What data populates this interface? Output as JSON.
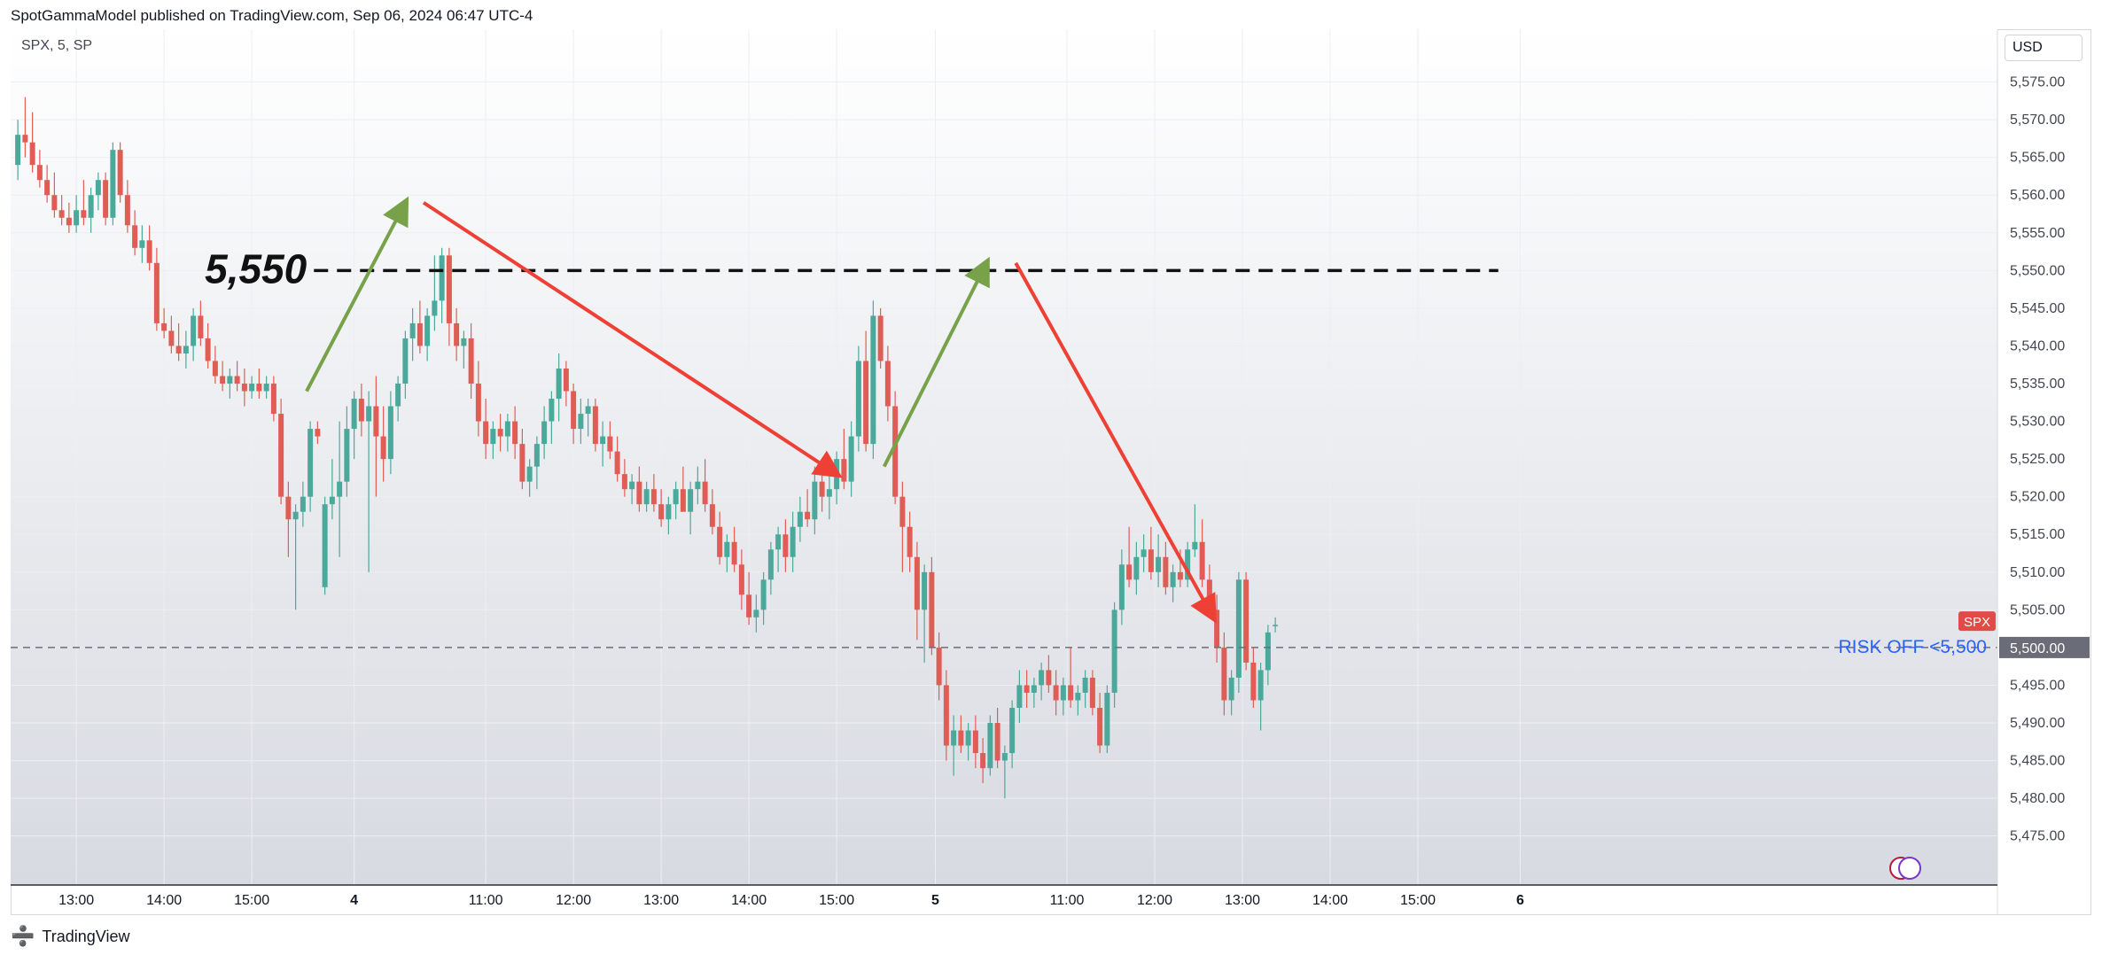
{
  "header": {
    "publish_line": "SpotGammaModel published on TradingView.com, Sep 06, 2024 06:47 UTC-4"
  },
  "chart_header": {
    "symbol_line": "SPX, 5, SP",
    "currency": "USD"
  },
  "footer": {
    "brand": "TradingView",
    "logo_glyph": "➗"
  },
  "colors": {
    "up": "#4aa99b",
    "down": "#e05d55",
    "green_arrow": "#77a24a",
    "red_arrow": "#ef4035",
    "level_line": "#111111",
    "risk_label": "#2962ff",
    "spx_badge": "#e04c45",
    "price_badge": "#6a6d78",
    "grid": "#eceef2",
    "bg_top": "#ffffff",
    "bg_bottom": "#d7dae1"
  },
  "chart_data": {
    "type": "candlestick",
    "symbol": "SPX",
    "interval": "5",
    "exchange": "SP",
    "currency": "USD",
    "ylim": [
      5468.5,
      5582.0
    ],
    "y_ticks": [
      "5,475.00",
      "5,480.00",
      "5,485.00",
      "5,490.00",
      "5,495.00",
      "5,500.00",
      "5,505.00",
      "5,510.00",
      "5,515.00",
      "5,520.00",
      "5,525.00",
      "5,530.00",
      "5,535.00",
      "5,540.00",
      "5,545.00",
      "5,550.00",
      "5,555.00",
      "5,560.00",
      "5,565.00",
      "5,570.00",
      "5,575.00"
    ],
    "x_ticks": [
      {
        "bar": 8.5,
        "label": "13:00",
        "bold": false
      },
      {
        "bar": 20.5,
        "label": "14:00",
        "bold": false
      },
      {
        "bar": 32.5,
        "label": "15:00",
        "bold": false
      },
      {
        "bar": 46.5,
        "label": "4",
        "bold": true
      },
      {
        "bar": 64.5,
        "label": "11:00",
        "bold": false
      },
      {
        "bar": 76.5,
        "label": "12:00",
        "bold": false
      },
      {
        "bar": 88.5,
        "label": "13:00",
        "bold": false
      },
      {
        "bar": 100.5,
        "label": "14:00",
        "bold": false
      },
      {
        "bar": 112.5,
        "label": "15:00",
        "bold": false
      },
      {
        "bar": 126,
        "label": "5",
        "bold": true
      },
      {
        "bar": 144,
        "label": "11:00",
        "bold": false
      },
      {
        "bar": 156,
        "label": "12:00",
        "bold": false
      },
      {
        "bar": 168,
        "label": "13:00",
        "bold": false
      },
      {
        "bar": 180,
        "label": "14:00",
        "bold": false
      },
      {
        "bar": 192,
        "label": "15:00",
        "bold": false
      },
      {
        "bar": 206,
        "label": "6",
        "bold": true
      }
    ],
    "candles": [
      [
        5564,
        5570,
        5562,
        5568
      ],
      [
        5568,
        5573,
        5565,
        5567
      ],
      [
        5567,
        5571,
        5563,
        5564
      ],
      [
        5564,
        5566,
        5561,
        5562
      ],
      [
        5562,
        5564,
        5559,
        5560
      ],
      [
        5560,
        5563,
        5557,
        5558
      ],
      [
        5558,
        5560,
        5556,
        5557
      ],
      [
        5557,
        5559,
        5555,
        5556
      ],
      [
        5556,
        5560,
        5555,
        5558
      ],
      [
        5558,
        5562,
        5556,
        5557
      ],
      [
        5557,
        5561,
        5555,
        5560
      ],
      [
        5560,
        5563,
        5558,
        5562
      ],
      [
        5562,
        5563,
        5556,
        5557
      ],
      [
        5557,
        5567,
        5556,
        5566
      ],
      [
        5566,
        5567,
        5559,
        5560
      ],
      [
        5560,
        5562,
        5555,
        5556
      ],
      [
        5556,
        5558,
        5552,
        5553
      ],
      [
        5553,
        5556,
        5551,
        5554
      ],
      [
        5554,
        5556,
        5550,
        5551
      ],
      [
        5551,
        5553,
        5542,
        5543
      ],
      [
        5543,
        5545,
        5541,
        5542
      ],
      [
        5542,
        5544,
        5539,
        5540
      ],
      [
        5540,
        5543,
        5538,
        5539
      ],
      [
        5539,
        5542,
        5537,
        5540
      ],
      [
        5540,
        5545,
        5538,
        5544
      ],
      [
        5544,
        5546,
        5540,
        5541
      ],
      [
        5541,
        5543,
        5537,
        5538
      ],
      [
        5538,
        5540,
        5535,
        5536
      ],
      [
        5536,
        5538,
        5534,
        5535
      ],
      [
        5535,
        5537,
        5533,
        5536
      ],
      [
        5536,
        5538,
        5534,
        5535
      ],
      [
        5535,
        5537,
        5532,
        5534
      ],
      [
        5534,
        5536,
        5533,
        5535
      ],
      [
        5535,
        5537,
        5533,
        5534
      ],
      [
        5534,
        5536,
        5533,
        5535
      ],
      [
        5535,
        5536,
        5530,
        5531
      ],
      [
        5531,
        5533,
        5519,
        5520
      ],
      [
        5520,
        5522,
        5512,
        5517
      ],
      [
        5517,
        5519,
        5505,
        5518
      ],
      [
        5518,
        5522,
        5516,
        5520
      ],
      [
        5520,
        5530,
        5518,
        5529
      ],
      [
        5529,
        5530,
        5527,
        5528
      ],
      [
        5508,
        5520,
        5507,
        5519
      ],
      [
        5519,
        5525,
        5517,
        5520
      ],
      [
        5520,
        5530,
        5512,
        5522
      ],
      [
        5522,
        5532,
        5520,
        5529
      ],
      [
        5529,
        5534,
        5525,
        5533
      ],
      [
        5533,
        5535,
        5528,
        5530
      ],
      [
        5530,
        5534,
        5510,
        5532
      ],
      [
        5532,
        5536,
        5520,
        5528
      ],
      [
        5528,
        5532,
        5522,
        5525
      ],
      [
        5525,
        5534,
        5523,
        5532
      ],
      [
        5532,
        5536,
        5530,
        5535
      ],
      [
        5535,
        5542,
        5533,
        5541
      ],
      [
        5541,
        5545,
        5538,
        5543
      ],
      [
        5543,
        5546,
        5539,
        5540
      ],
      [
        5540,
        5545,
        5538,
        5544
      ],
      [
        5544,
        5552,
        5542,
        5546
      ],
      [
        5546,
        5553,
        5543,
        5552
      ],
      [
        5552,
        5553,
        5540,
        5543
      ],
      [
        5543,
        5545,
        5538,
        5540
      ],
      [
        5540,
        5542,
        5537,
        5541
      ],
      [
        5541,
        5543,
        5533,
        5535
      ],
      [
        5535,
        5538,
        5528,
        5530
      ],
      [
        5530,
        5533,
        5525,
        5527
      ],
      [
        5527,
        5530,
        5525,
        5529
      ],
      [
        5529,
        5531,
        5526,
        5528
      ],
      [
        5528,
        5531,
        5526,
        5530
      ],
      [
        5530,
        5532,
        5525,
        5527
      ],
      [
        5527,
        5529,
        5521,
        5522
      ],
      [
        5522,
        5525,
        5520,
        5524
      ],
      [
        5524,
        5528,
        5521,
        5527
      ],
      [
        5527,
        5532,
        5525,
        5530
      ],
      [
        5530,
        5534,
        5527,
        5533
      ],
      [
        5533,
        5539,
        5530,
        5537
      ],
      [
        5537,
        5538,
        5532,
        5534
      ],
      [
        5534,
        5535,
        5527,
        5529
      ],
      [
        5529,
        5533,
        5527,
        5531
      ],
      [
        5531,
        5533,
        5528,
        5532
      ],
      [
        5532,
        5533,
        5526,
        5527
      ],
      [
        5527,
        5530,
        5524,
        5528
      ],
      [
        5528,
        5530,
        5525,
        5526
      ],
      [
        5526,
        5528,
        5522,
        5523
      ],
      [
        5523,
        5525,
        5520,
        5521
      ],
      [
        5521,
        5523,
        5519,
        5522
      ],
      [
        5522,
        5524,
        5518,
        5519
      ],
      [
        5519,
        5522,
        5518,
        5521
      ],
      [
        5521,
        5523,
        5518,
        5519
      ],
      [
        5519,
        5521,
        5516,
        5517
      ],
      [
        5517,
        5520,
        5515,
        5519
      ],
      [
        5519,
        5522,
        5517,
        5521
      ],
      [
        5521,
        5524,
        5519,
        5518
      ],
      [
        5518,
        5522,
        5515,
        5521
      ],
      [
        5521,
        5524,
        5519,
        5522
      ],
      [
        5522,
        5525,
        5518,
        5519
      ],
      [
        5519,
        5521,
        5515,
        5516
      ],
      [
        5516,
        5518,
        5511,
        5512
      ],
      [
        5512,
        5515,
        5510,
        5514
      ],
      [
        5514,
        5516,
        5510,
        5511
      ],
      [
        5511,
        5513,
        5505,
        5507
      ],
      [
        5507,
        5510,
        5503,
        5504
      ],
      [
        5504,
        5507,
        5502,
        5505
      ],
      [
        5505,
        5510,
        5503,
        5509
      ],
      [
        5509,
        5514,
        5507,
        5513
      ],
      [
        5513,
        5516,
        5510,
        5515
      ],
      [
        5515,
        5517,
        5510,
        5512
      ],
      [
        5512,
        5518,
        5510,
        5516
      ],
      [
        5516,
        5520,
        5514,
        5518
      ],
      [
        5518,
        5521,
        5516,
        5517
      ],
      [
        5517,
        5524,
        5515,
        5522
      ],
      [
        5522,
        5525,
        5518,
        5520
      ],
      [
        5520,
        5523,
        5517,
        5521
      ],
      [
        5521,
        5526,
        5519,
        5525
      ],
      [
        5525,
        5529,
        5521,
        5522
      ],
      [
        5522,
        5530,
        5520,
        5528
      ],
      [
        5528,
        5540,
        5526,
        5538
      ],
      [
        5538,
        5542,
        5526,
        5527
      ],
      [
        5527,
        5546,
        5525,
        5544
      ],
      [
        5544,
        5545,
        5537,
        5538
      ],
      [
        5538,
        5540,
        5530,
        5532
      ],
      [
        5532,
        5534,
        5519,
        5520
      ],
      [
        5520,
        5522,
        5510,
        5516
      ],
      [
        5516,
        5518,
        5510,
        5512
      ],
      [
        5512,
        5514,
        5501,
        5505
      ],
      [
        5505,
        5511,
        5498,
        5510
      ],
      [
        5510,
        5512,
        5499,
        5500
      ],
      [
        5500,
        5502,
        5493,
        5495
      ],
      [
        5495,
        5497,
        5485,
        5487
      ],
      [
        5487,
        5491,
        5483,
        5489
      ],
      [
        5489,
        5491,
        5486,
        5487
      ],
      [
        5487,
        5490,
        5485,
        5489
      ],
      [
        5489,
        5491,
        5484,
        5486
      ],
      [
        5486,
        5488,
        5482,
        5484
      ],
      [
        5484,
        5491,
        5483,
        5490
      ],
      [
        5490,
        5492,
        5484,
        5485
      ],
      [
        5485,
        5487,
        5480,
        5486
      ],
      [
        5486,
        5493,
        5484,
        5492
      ],
      [
        5492,
        5497,
        5490,
        5495
      ],
      [
        5495,
        5497,
        5492,
        5494
      ],
      [
        5494,
        5496,
        5492,
        5495
      ],
      [
        5495,
        5498,
        5493,
        5497
      ],
      [
        5497,
        5499,
        5494,
        5495
      ],
      [
        5495,
        5497,
        5491,
        5493
      ],
      [
        5493,
        5496,
        5491,
        5495
      ],
      [
        5495,
        5500,
        5492,
        5493
      ],
      [
        5493,
        5495,
        5491,
        5494
      ],
      [
        5494,
        5497,
        5492,
        5496
      ],
      [
        5496,
        5497,
        5491,
        5492
      ],
      [
        5492,
        5494,
        5486,
        5487
      ],
      [
        5487,
        5495,
        5486,
        5494
      ],
      [
        5494,
        5506,
        5492,
        5505
      ],
      [
        5505,
        5513,
        5503,
        5511
      ],
      [
        5511,
        5516,
        5508,
        5509
      ],
      [
        5509,
        5514,
        5507,
        5512
      ],
      [
        5512,
        5515,
        5510,
        5513
      ],
      [
        5513,
        5516,
        5509,
        5510
      ],
      [
        5510,
        5515,
        5508,
        5512
      ],
      [
        5512,
        5514,
        5507,
        5508
      ],
      [
        5508,
        5511,
        5506,
        5510
      ],
      [
        5510,
        5513,
        5508,
        5509
      ],
      [
        5509,
        5514,
        5508,
        5513
      ],
      [
        5513,
        5519,
        5512,
        5514
      ],
      [
        5514,
        5517,
        5508,
        5509
      ],
      [
        5509,
        5511,
        5504,
        5505
      ],
      [
        5505,
        5507,
        5498,
        5500
      ],
      [
        5500,
        5502,
        5491,
        5493
      ],
      [
        5493,
        5497,
        5491,
        5496
      ],
      [
        5496,
        5510,
        5494,
        5509
      ],
      [
        5509,
        5510,
        5497,
        5498
      ],
      [
        5498,
        5500,
        5492,
        5493
      ],
      [
        5493,
        5498,
        5489,
        5497
      ],
      [
        5497,
        5503,
        5495,
        5502
      ],
      [
        5503,
        5504,
        5502,
        5503
      ]
    ],
    "annotations": {
      "level_label": "5,550",
      "level_price": 5550,
      "level_start_bar": 41,
      "level_end_bar": 203,
      "risk_label": "RISK OFF <5,500",
      "risk_price": 5500,
      "spx_badge": "SPX",
      "price_badge": "5,500.00",
      "green_arrows": [
        {
          "from": [
            40,
            5534
          ],
          "to": [
            53.5,
            5559
          ]
        },
        {
          "from": [
            119,
            5524
          ],
          "to": [
            133,
            5551
          ]
        }
      ],
      "red_arrows": [
        {
          "from": [
            56,
            5559
          ],
          "to": [
            112.5,
            5523
          ]
        },
        {
          "from": [
            137,
            5551
          ],
          "to": [
            164,
            5504
          ]
        }
      ]
    }
  }
}
